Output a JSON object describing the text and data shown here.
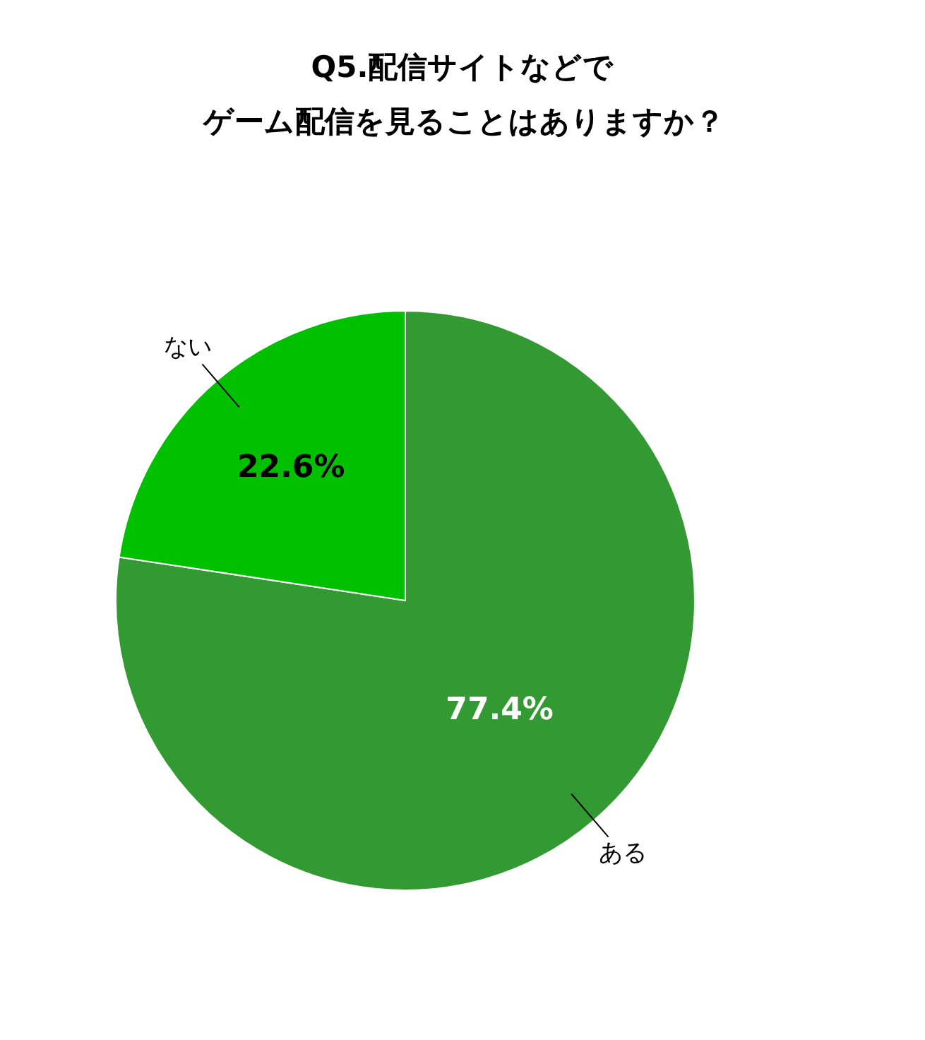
{
  "chart_data": {
    "type": "pie",
    "title": "Q5.配信サイトなどで",
    "subtitle": "ゲーム配信を見ることはありますか？",
    "categories": [
      "ある",
      "ない"
    ],
    "values": [
      77.4,
      22.6
    ],
    "colors": [
      "#339933",
      "#00c000"
    ],
    "value_labels": [
      "77.4%",
      "22.6%"
    ],
    "legend": false
  }
}
